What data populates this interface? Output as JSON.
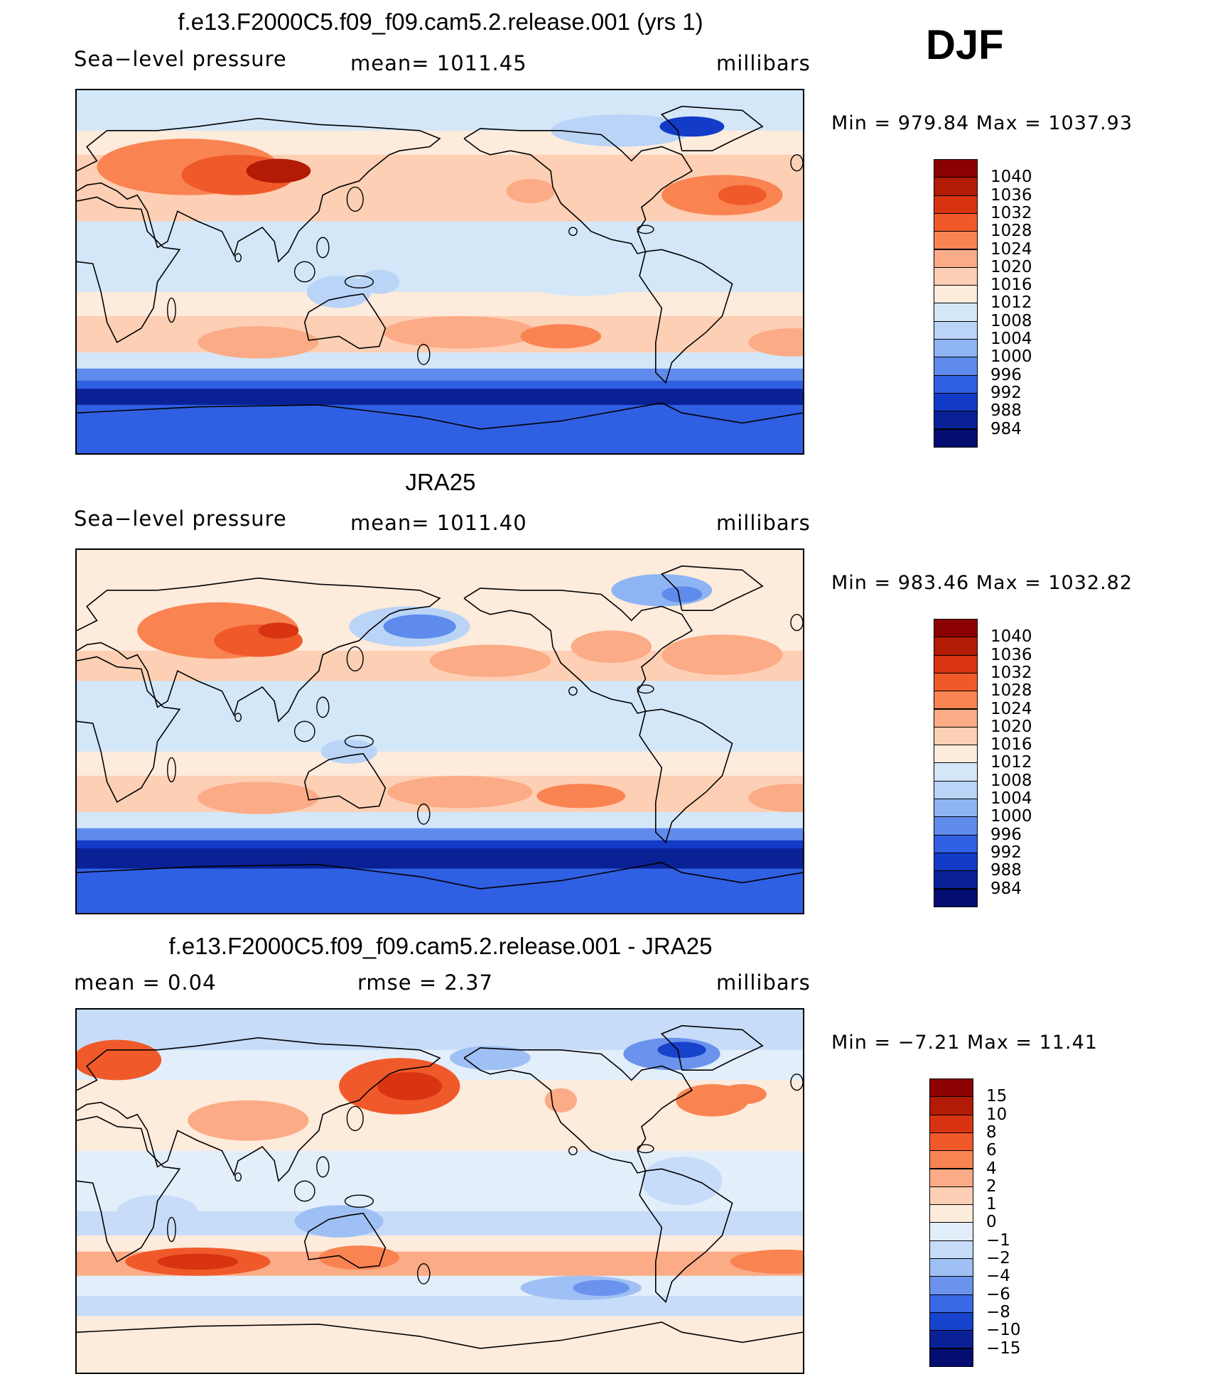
{
  "season": "DJF",
  "panels": [
    {
      "id": "model",
      "title": "f.e13.F2000C5.f09_f09.cam5.2.release.001 (yrs 1)",
      "left_text": "Sea−level pressure",
      "center_text": "mean=  1011.45",
      "right_text": "millibars",
      "minmax": "Min  =  979.84  Max  =  1037.93",
      "scale": "abs"
    },
    {
      "id": "obs",
      "title": "JRA25",
      "left_text": "Sea−level pressure",
      "center_text": "mean=  1011.40",
      "right_text": "millibars",
      "minmax": "Min  =  983.46  Max  =  1032.82",
      "scale": "abs"
    },
    {
      "id": "diff",
      "title": "f.e13.F2000C5.f09_f09.cam5.2.release.001 - JRA25",
      "left_text": "mean  =     0.04",
      "center_text": "rmse  =     2.37",
      "right_text": "millibars",
      "minmax": "Min  =   −7.21  Max  =    11.41",
      "scale": "diff"
    }
  ],
  "legend_abs": {
    "labels": [
      "1040",
      "1036",
      "1032",
      "1028",
      "1024",
      "1020",
      "1016",
      "1012",
      "1008",
      "1004",
      "1000",
      "996",
      "992",
      "988",
      "984"
    ],
    "colors": [
      "#8b0000",
      "#b21b06",
      "#d93412",
      "#f05a2a",
      "#f98452",
      "#fbab86",
      "#fdcfb4",
      "#fdebdc",
      "#d3e7f9",
      "#b9d4f7",
      "#8fb4f3",
      "#5e8bec",
      "#2f5fe3",
      "#123bc7",
      "#0a2196",
      "#040d70"
    ]
  },
  "legend_diff": {
    "labels": [
      "15",
      "10",
      "8",
      "6",
      "4",
      "2",
      "1",
      "0",
      "−1",
      "−2",
      "−4",
      "−6",
      "−8",
      "−10",
      "−15"
    ],
    "colors": [
      "#8b0000",
      "#b21b06",
      "#d93412",
      "#f05a2a",
      "#f98452",
      "#fbab86",
      "#fdcfb4",
      "#fdebdc",
      "#e3eefb",
      "#c6dcf8",
      "#9fc0f4",
      "#6b93ed",
      "#3b68e4",
      "#1742cc",
      "#0a2196",
      "#040d70"
    ]
  }
}
